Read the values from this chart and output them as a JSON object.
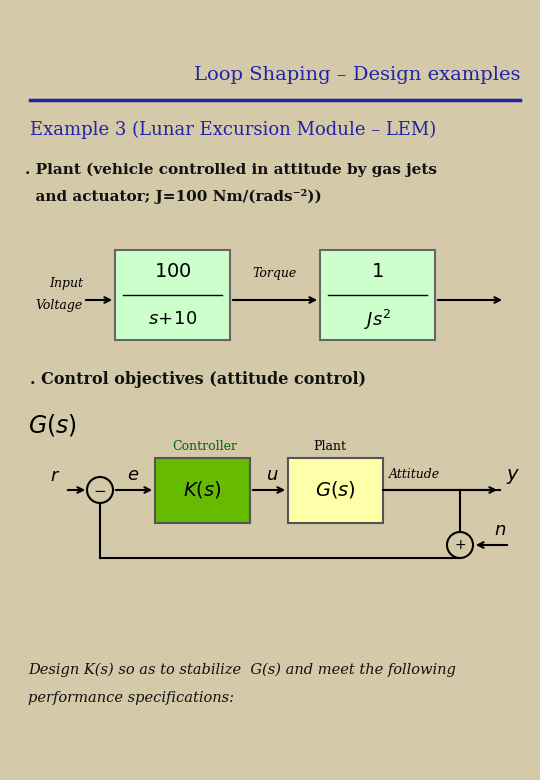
{
  "title": "Loop Shaping – Design examples",
  "example_title": "Example 3 (Lunar Excursion Module – LEM)",
  "bg_color": "#d4c9a8",
  "title_color": "#2222aa",
  "text_color_black": "#111111",
  "plant_line1": ". Plant (vehicle controlled in attitude by gas jets",
  "plant_line2": "  and actuator; J=100 Nm/(rads⁻²))",
  "control_obj": ". Control objectives (attitude control)",
  "block_fill_green": "#ccffcc",
  "block_fill_yellow": "#ffffaa",
  "block_k_fill": "#66bb00",
  "controller_label": "Controller",
  "plant_label": "Plant",
  "attitude_label": "Attitude",
  "design_line1": "Design K(s) so as to stabilize  G(s) and meet the following",
  "design_line2": "performance specifications:"
}
